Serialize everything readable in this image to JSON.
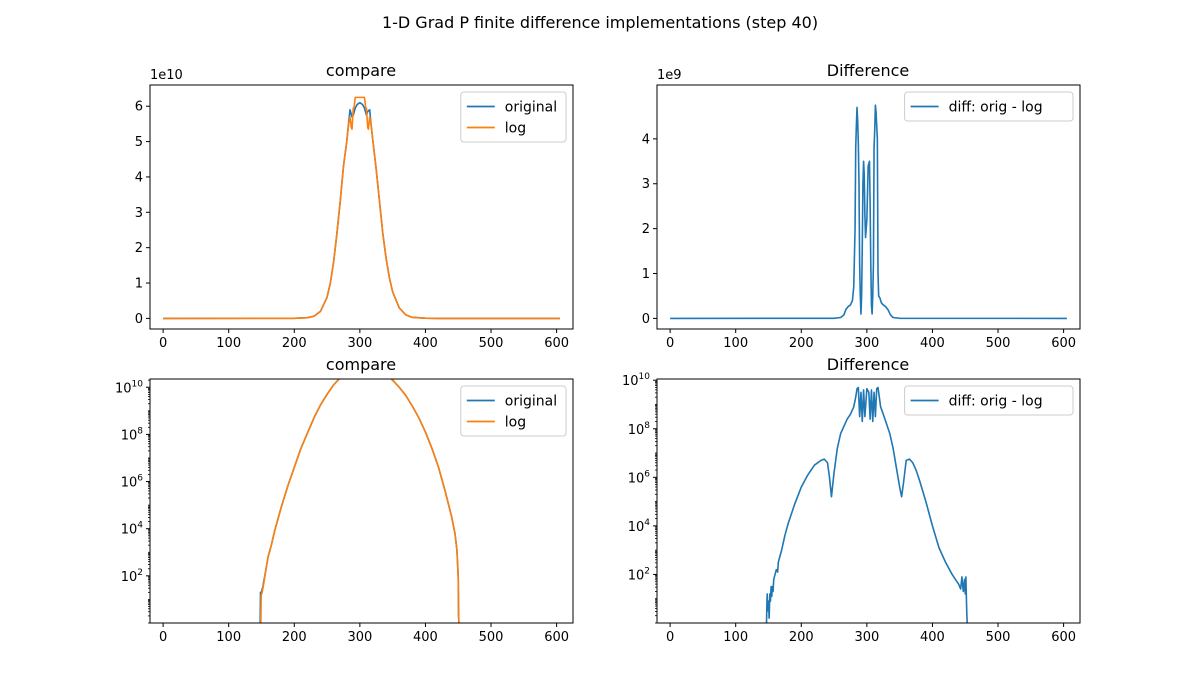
{
  "figure": {
    "suptitle": "1-D Grad P finite difference implementations (step 40)"
  },
  "colors": {
    "original": "#1f77b4",
    "log": "#ff7f0e",
    "diff": "#1f77b4"
  },
  "chart_data": [
    {
      "id": "linear-compare",
      "type": "line",
      "title": "compare",
      "yscale": "linear",
      "offset_text": "1e10",
      "xlim": [
        -20,
        625
      ],
      "ylim": [
        -0.3,
        6.6
      ],
      "xticks": [
        0,
        100,
        200,
        300,
        400,
        500,
        600
      ],
      "xtick_labels": [
        "0",
        "100",
        "200",
        "300",
        "400",
        "500",
        "600"
      ],
      "yticks": [
        0,
        1,
        2,
        3,
        4,
        5,
        6
      ],
      "ytick_labels": [
        "0",
        "1",
        "2",
        "3",
        "4",
        "5",
        "6"
      ],
      "legend": {
        "placement": "upper right",
        "entries": [
          "original",
          "log"
        ]
      },
      "series": [
        {
          "name": "original",
          "color": "#1f77b4",
          "x": [
            0,
            200,
            220,
            230,
            240,
            250,
            255,
            260,
            265,
            270,
            275,
            280,
            283,
            285,
            288,
            290,
            293,
            296,
            300,
            304,
            307,
            310,
            312,
            315,
            317,
            320,
            325,
            330,
            335,
            340,
            345,
            350,
            360,
            370,
            380,
            400,
            420,
            450,
            605
          ],
          "y": [
            0,
            0.003,
            0.02,
            0.06,
            0.2,
            0.6,
            1.0,
            1.6,
            2.4,
            3.3,
            4.3,
            5.0,
            5.55,
            5.9,
            5.7,
            5.75,
            5.95,
            6.05,
            6.1,
            6.05,
            5.95,
            5.75,
            5.85,
            5.9,
            5.5,
            5.0,
            4.2,
            3.3,
            2.4,
            1.7,
            1.15,
            0.75,
            0.3,
            0.1,
            0.03,
            0.005,
            0,
            0,
            0
          ]
        },
        {
          "name": "log",
          "color": "#ff7f0e",
          "x": [
            0,
            200,
            220,
            230,
            240,
            250,
            255,
            260,
            265,
            270,
            275,
            280,
            283,
            285,
            287,
            288,
            290,
            291,
            293,
            295,
            297,
            300,
            303,
            305,
            307,
            309,
            310,
            312,
            313,
            315,
            317,
            320,
            325,
            330,
            335,
            340,
            345,
            350,
            360,
            370,
            380,
            400,
            420,
            450,
            605
          ],
          "y": [
            0,
            0.003,
            0.02,
            0.06,
            0.2,
            0.6,
            1.0,
            1.6,
            2.4,
            3.3,
            4.3,
            5.0,
            5.5,
            5.7,
            5.4,
            5.35,
            5.95,
            5.95,
            6.25,
            6.25,
            6.25,
            6.25,
            6.25,
            6.25,
            6.25,
            5.95,
            5.95,
            5.4,
            5.35,
            5.7,
            5.5,
            5.0,
            4.2,
            3.3,
            2.4,
            1.7,
            1.15,
            0.75,
            0.3,
            0.1,
            0.03,
            0.005,
            0,
            0,
            0
          ]
        }
      ]
    },
    {
      "id": "linear-difference",
      "type": "line",
      "title": "Difference",
      "yscale": "linear",
      "offset_text": "1e9",
      "xlim": [
        -20,
        625
      ],
      "ylim": [
        -0.236,
        5.2
      ],
      "xticks": [
        0,
        100,
        200,
        300,
        400,
        500,
        600
      ],
      "xtick_labels": [
        "0",
        "100",
        "200",
        "300",
        "400",
        "500",
        "600"
      ],
      "yticks": [
        0,
        1,
        2,
        3,
        4
      ],
      "ytick_labels": [
        "0",
        "1",
        "2",
        "3",
        "4"
      ],
      "legend": {
        "placement": "upper right",
        "entries": [
          "diff: orig - log"
        ]
      },
      "series": [
        {
          "name": "diff: orig - log",
          "color": "#1f77b4",
          "x": [
            0,
            250,
            260,
            265,
            268,
            272,
            275,
            278,
            280,
            282,
            283,
            284,
            285,
            286,
            287,
            288,
            289,
            290,
            291,
            292,
            293,
            294,
            295,
            296,
            297,
            298,
            300,
            302,
            304,
            305,
            306,
            307,
            308,
            309,
            310,
            311,
            312,
            313,
            314,
            315,
            316,
            317,
            318,
            320,
            322,
            325,
            328,
            332,
            336,
            340,
            350,
            605
          ],
          "y": [
            0,
            0.003,
            0.02,
            0.08,
            0.2,
            0.27,
            0.3,
            0.4,
            0.7,
            2.0,
            3.8,
            4.3,
            4.7,
            4.4,
            3.9,
            3.0,
            1.2,
            0.5,
            0.1,
            0.5,
            1.6,
            3.0,
            3.5,
            3.2,
            2.3,
            1.8,
            2.2,
            3.4,
            3.5,
            2.5,
            1.2,
            0.3,
            0.1,
            0.5,
            1.2,
            3.8,
            4.2,
            4.75,
            4.6,
            4.3,
            4.0,
            1.0,
            0.5,
            0.45,
            0.35,
            0.3,
            0.27,
            0.2,
            0.08,
            0.02,
            0.003,
            0
          ]
        }
      ]
    },
    {
      "id": "log-compare",
      "type": "line",
      "title": "compare",
      "yscale": "log",
      "xlim": [
        -20,
        625
      ],
      "ylim_exp": [
        0,
        10.35
      ],
      "xticks": [
        0,
        100,
        200,
        300,
        400,
        500,
        600
      ],
      "xtick_labels": [
        "0",
        "100",
        "200",
        "300",
        "400",
        "500",
        "600"
      ],
      "yticks_exp": [
        2,
        4,
        6,
        8,
        10
      ],
      "ytick_bases": [
        "10",
        "10",
        "10",
        "10",
        "10"
      ],
      "ytick_exps": [
        "2",
        "4",
        "6",
        "8",
        "10"
      ],
      "legend": {
        "placement": "upper right",
        "entries": [
          "original",
          "log"
        ]
      },
      "series": [
        {
          "name": "original",
          "color": "#1f77b4",
          "x": [
            148,
            148.5,
            150,
            151,
            152,
            153,
            155,
            157,
            160,
            165,
            170,
            180,
            190,
            200,
            210,
            220,
            230,
            240,
            250,
            260,
            270,
            280,
            290,
            300,
            310,
            320,
            330,
            340,
            350,
            360,
            370,
            380,
            390,
            400,
            410,
            420,
            430,
            440,
            445,
            448,
            450,
            450.5,
            451
          ],
          "x_note": "",
          "y": [
            0,
            1.3,
            1.3,
            1.45,
            1.5,
            1.7,
            2.0,
            2.3,
            2.8,
            3.3,
            3.9,
            4.9,
            5.8,
            6.6,
            7.4,
            8.05,
            8.7,
            9.25,
            9.7,
            10.1,
            10.4,
            10.65,
            10.75,
            10.78,
            10.78,
            10.77,
            10.7,
            10.55,
            10.3,
            10.0,
            9.65,
            9.2,
            8.7,
            8.1,
            7.4,
            6.6,
            5.6,
            4.5,
            3.8,
            3.1,
            2.0,
            0.4,
            0
          ]
        },
        {
          "name": "log",
          "color": "#ff7f0e",
          "x": [
            149,
            149.5,
            150,
            151,
            152,
            153,
            155,
            157,
            160,
            165,
            170,
            180,
            190,
            200,
            210,
            220,
            230,
            240,
            250,
            260,
            270,
            280,
            290,
            300,
            310,
            320,
            330,
            340,
            350,
            360,
            370,
            380,
            390,
            400,
            410,
            420,
            430,
            440,
            445,
            448,
            450,
            450.5,
            451
          ],
          "y": [
            0,
            1.15,
            1.2,
            1.3,
            1.45,
            1.6,
            1.95,
            2.3,
            2.8,
            3.3,
            3.9,
            4.9,
            5.8,
            6.6,
            7.4,
            8.05,
            8.7,
            9.25,
            9.7,
            10.1,
            10.4,
            10.65,
            10.75,
            10.78,
            10.78,
            10.77,
            10.7,
            10.55,
            10.3,
            10.0,
            9.65,
            9.2,
            8.7,
            8.1,
            7.4,
            6.6,
            5.6,
            4.5,
            3.8,
            3.1,
            1.9,
            0.3,
            0
          ]
        }
      ]
    },
    {
      "id": "log-difference",
      "type": "line",
      "title": "Difference",
      "yscale": "log",
      "xlim": [
        -20,
        625
      ],
      "ylim_exp": [
        0,
        10.05
      ],
      "xticks": [
        0,
        100,
        200,
        300,
        400,
        500,
        600
      ],
      "xtick_labels": [
        "0",
        "100",
        "200",
        "300",
        "400",
        "500",
        "600"
      ],
      "yticks_exp": [
        2,
        4,
        6,
        8,
        10
      ],
      "ytick_bases": [
        "10",
        "10",
        "10",
        "10",
        "10"
      ],
      "ytick_exps": [
        "2",
        "4",
        "6",
        "8",
        "10"
      ],
      "legend": {
        "placement": "upper right",
        "entries": [
          "diff: orig - log"
        ]
      },
      "series": [
        {
          "name": "diff: orig - log",
          "color": "#1f77b4",
          "x": [
            147,
            147.5,
            148,
            149,
            150,
            151,
            152,
            153,
            154,
            155,
            156,
            157,
            158,
            160,
            162,
            164,
            165,
            166,
            168,
            170,
            175,
            180,
            190,
            200,
            210,
            220,
            230,
            235,
            240,
            243,
            246,
            250,
            255,
            260,
            265,
            270,
            275,
            280,
            283,
            285,
            287,
            289,
            291,
            293,
            295,
            297,
            300,
            303,
            305,
            307,
            309,
            311,
            313,
            315,
            317,
            319,
            321,
            325,
            330,
            335,
            340,
            345,
            350,
            353,
            356,
            360,
            365,
            370,
            375,
            380,
            390,
            400,
            410,
            420,
            430,
            440,
            443,
            445,
            447,
            449,
            450,
            451,
            452,
            452.5,
            453
          ],
          "y": [
            0,
            0.7,
            1.2,
            0.5,
            0.9,
            0.2,
            1.2,
            0.9,
            1.5,
            1.1,
            1.5,
            1.3,
            1.8,
            2.0,
            2.2,
            2.1,
            2.5,
            2.6,
            2.8,
            3.0,
            3.6,
            4.1,
            4.9,
            5.6,
            6.1,
            6.5,
            6.7,
            6.75,
            6.6,
            6.0,
            5.2,
            6.2,
            7.2,
            7.8,
            8.1,
            8.4,
            8.6,
            8.9,
            9.3,
            9.65,
            9.7,
            8.5,
            9.5,
            8.3,
            9.6,
            8.5,
            9.65,
            9.5,
            8.4,
            9.6,
            8.3,
            9.5,
            8.5,
            9.65,
            9.7,
            9.3,
            8.9,
            8.6,
            8.2,
            7.8,
            7.2,
            6.4,
            5.6,
            5.2,
            5.8,
            6.7,
            6.75,
            6.6,
            6.3,
            5.9,
            5.0,
            4.0,
            3.1,
            2.5,
            2.0,
            1.6,
            1.4,
            1.9,
            1.3,
            1.8,
            1.2,
            1.9,
            0.8,
            0.3,
            0
          ]
        }
      ]
    }
  ]
}
